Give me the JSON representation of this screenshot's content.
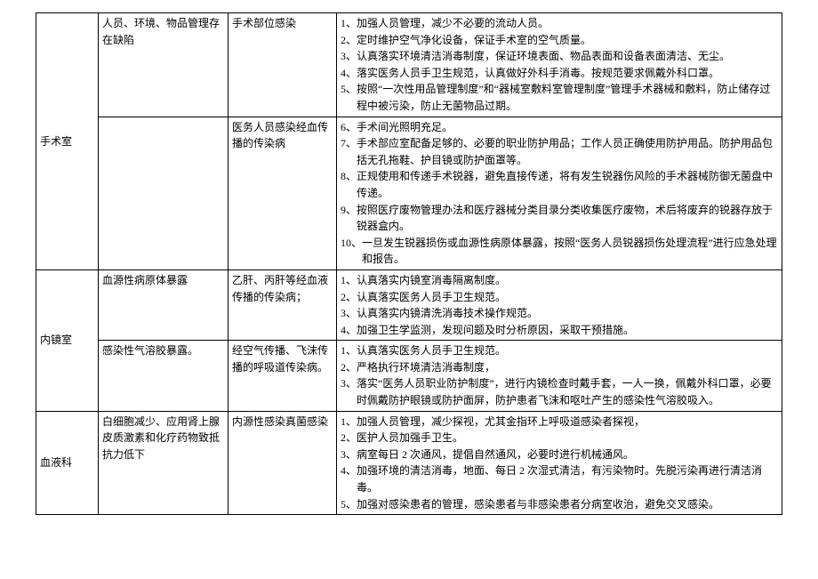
{
  "rows": [
    {
      "dept": "手术室",
      "risk1": "人员、环境、物品管理存在缺陷",
      "cause1": "手术部位感染",
      "measures1": [
        [
          "1、",
          "加强人员管理，减少不必要的流动人员。"
        ],
        [
          "2、",
          "定时维护空气净化设备，保证手术室的空气质量。"
        ],
        [
          "3、",
          "认真落实环境清洁消毒制度，保证环境表面、物品表面和设备表面清洁、无尘。"
        ],
        [
          "4、",
          "落实医务人员手卫生规范，认真做好外科手消毒。按规范要求佩戴外科口罩。"
        ],
        [
          "5、",
          "按照“一次性用品管理制度”和“器械室敷料室管理制度”管理手术器械和敷料，防止储存过程中被污染，防止无菌物品过期。"
        ]
      ],
      "risk2": "",
      "cause2": "医务人员感染经血传播的传染病",
      "measures2": [
        [
          "6、",
          "手术间光照明充足。"
        ],
        [
          "7、",
          "手术部应室配备足够的、必要的职业防护用品；工作人员正确使用防护用品。防护用品包括无孔拖鞋、护目镜或防护面罩等。"
        ],
        [
          "8、",
          "正规使用和传递手术锐器，避免直接传递，将有发生锐器伤风险的手术器械防御无菌盘中传递。"
        ],
        [
          "9、",
          "按照医疗废物管理办法和医疗器械分类目录分类收集医疗废物，术后将废弃的锐器存放于锐器盒内。"
        ],
        [
          "10、",
          "一旦发生锐器损伤或血源性病原体暴露，按照“医务人员锐器损伤处理流程”进行应急处理和报告。"
        ]
      ]
    },
    {
      "dept": "内镜室",
      "risk1": "血源性病原体暴露",
      "cause1": "乙肝、丙肝等经血液传播的传染病；",
      "measures1": [
        [
          "1、",
          "认真落实内镜室消毒隔离制度。"
        ],
        [
          "2、",
          "认真落实医务人员手卫生规范。"
        ],
        [
          "3、",
          "认真落实内镜清洗消毒技术操作规范。"
        ],
        [
          "4、",
          "加强卫生学监测，发现问题及时分析原因，采取干预措施。"
        ]
      ],
      "risk2": "感染性气溶胶暴露。",
      "cause2": "经空气传播、飞沫传播的呼吸道传染病。",
      "measures2": [
        [
          "1、",
          "认真落实医务人员手卫生规范。"
        ],
        [
          "2、",
          "严格执行环境清洁消毒制度，"
        ],
        [
          "3、",
          "落实“医务人员职业防护制度”，进行内镜检查时戴手套，一人一换，佩戴外科口罩，必要时佩戴防护眼镜或防护面屏，防护患者飞沫和呕吐产生的感染性气溶胶吸入。"
        ]
      ]
    },
    {
      "dept": "血液科",
      "risk1": "白细胞减少、应用肾上腺皮质激素和化疗药物致抵抗力低下",
      "cause1": "内源性感染真菌感染",
      "measures1": [
        [
          "1、",
          "加强人员管理，减少探视，尤其金指环上呼吸道感染者探视，"
        ],
        [
          "2、",
          "医护人员加强手卫生。"
        ],
        [
          "3、",
          "病室每日 2 次通风，提倡自然通风，必要时进行机械通风。"
        ],
        [
          "4、",
          "加强环境的清洁消毒，地面、每日 2 次湿式清洁，有污染物时。先脱污染再进行清洁消毒。"
        ],
        [
          "5、",
          "加强对感染患者的管理，感染患者与非感染患者分病室收治，避免交叉感染。"
        ]
      ]
    }
  ]
}
